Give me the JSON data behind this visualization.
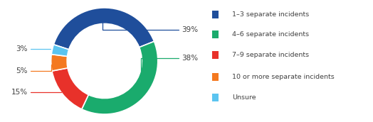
{
  "values": [
    39,
    38,
    15,
    5,
    3
  ],
  "colors": [
    "#1f4e9b",
    "#1aab6d",
    "#e8312a",
    "#f47920",
    "#5bc4f0"
  ],
  "legend_labels": [
    "1–3 separate incidents",
    "4–6 separate incidents",
    "7–9 separate incidents",
    "10 or more separate incidents",
    "Unsure"
  ],
  "pct_labels": [
    "39%",
    "38%",
    "15%",
    "5%",
    "3%"
  ],
  "donut_width": 0.3,
  "bg_color": "#ffffff",
  "start_angle": 162,
  "text_color": "#404040"
}
